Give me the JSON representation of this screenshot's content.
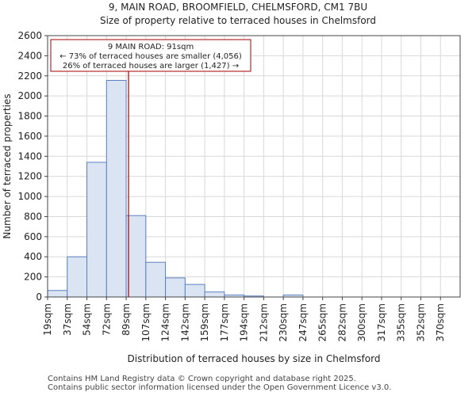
{
  "header": {
    "title": "9, MAIN ROAD, BROOMFIELD, CHELMSFORD, CM1 7BU",
    "subtitle": "Size of property relative to terraced houses in Chelmsford"
  },
  "footer": {
    "line1": "Contains HM Land Registry data © Crown copyright and database right 2025.",
    "line2": "Contains public sector information licensed under the Open Government Licence v3.0."
  },
  "chart_data": {
    "type": "bar",
    "title": "9, MAIN ROAD, BROOMFIELD, CHELMSFORD, CM1 7BU",
    "subtitle": "Size of property relative to terraced houses in Chelmsford",
    "xlabel": "Distribution of terraced houses by size in Chelmsford",
    "ylabel": "Number of terraced properties",
    "categories": [
      "19sqm",
      "37sqm",
      "54sqm",
      "72sqm",
      "89sqm",
      "107sqm",
      "124sqm",
      "142sqm",
      "159sqm",
      "177sqm",
      "194sqm",
      "212sqm",
      "230sqm",
      "247sqm",
      "265sqm",
      "282sqm",
      "300sqm",
      "317sqm",
      "335sqm",
      "352sqm",
      "370sqm"
    ],
    "values": [
      65,
      400,
      1340,
      2155,
      810,
      345,
      190,
      125,
      50,
      20,
      10,
      0,
      20,
      0,
      0,
      0,
      0,
      0,
      0,
      0,
      0
    ],
    "ylim": [
      0,
      2600
    ],
    "yticks": [
      0,
      200,
      400,
      600,
      800,
      1000,
      1200,
      1400,
      1600,
      1800,
      2000,
      2200,
      2400,
      2600
    ],
    "grid": true,
    "colors": {
      "bar_fill": "#dbe4f3",
      "bar_stroke": "#5a7fc0",
      "marker": "#aa0000",
      "grid": "#d9d9d9"
    },
    "marker": {
      "x_index": 4.12,
      "label": "9 MAIN ROAD: 91sqm"
    },
    "annotation": {
      "line1": "9 MAIN ROAD: 91sqm",
      "line2": "← 73% of terraced houses are smaller (4,056)",
      "line3": "26% of terraced houses are larger (1,427) →"
    }
  }
}
